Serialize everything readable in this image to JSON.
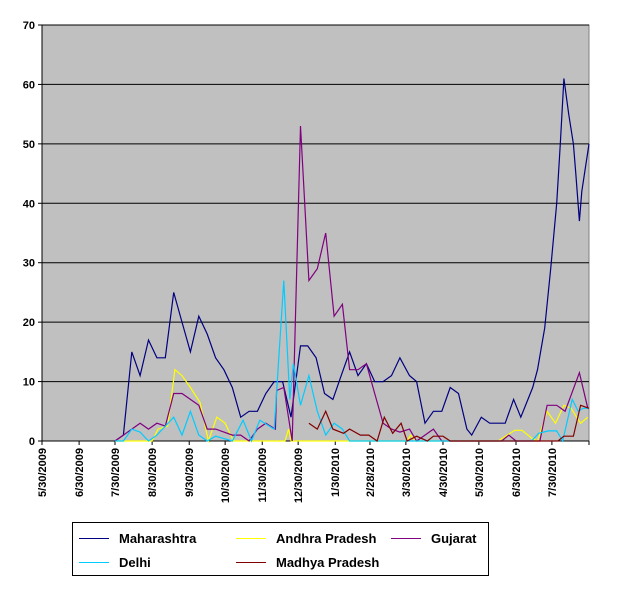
{
  "chart_data": {
    "type": "line",
    "title": "",
    "xlabel": "",
    "ylabel": "",
    "x_unit": "days since 5/30/2009",
    "xlim": [
      0,
      457
    ],
    "ylim": [
      0,
      70
    ],
    "grid": true,
    "legend_placement": "bottom",
    "y_ticks": [
      0,
      10,
      20,
      30,
      40,
      50,
      60,
      70
    ],
    "x_ticks": [
      {
        "day": 0,
        "label": "5/30/2009"
      },
      {
        "day": 31,
        "label": "6/30/2009"
      },
      {
        "day": 61,
        "label": "7/30/2009"
      },
      {
        "day": 92,
        "label": "8/30/2009"
      },
      {
        "day": 123,
        "label": "9/30/2009"
      },
      {
        "day": 153,
        "label": "10/30/2009"
      },
      {
        "day": 184,
        "label": "11/30/2009"
      },
      {
        "day": 214,
        "label": "12/30/2009"
      },
      {
        "day": 245,
        "label": "1/30/2010"
      },
      {
        "day": 274,
        "label": "2/28/2010"
      },
      {
        "day": 304,
        "label": "3/30/2010"
      },
      {
        "day": 335,
        "label": "4/30/2010"
      },
      {
        "day": 365,
        "label": "5/30/2010"
      },
      {
        "day": 396,
        "label": "6/30/2010"
      },
      {
        "day": 426,
        "label": "7/30/2010"
      }
    ],
    "series": [
      {
        "name": "Maharashtra",
        "color": "#000080",
        "points": [
          [
            61,
            0
          ],
          [
            68,
            1
          ],
          [
            75,
            15
          ],
          [
            82,
            11
          ],
          [
            89,
            17
          ],
          [
            96,
            14
          ],
          [
            103,
            14
          ],
          [
            110,
            25
          ],
          [
            117,
            20
          ],
          [
            124,
            15
          ],
          [
            131,
            21
          ],
          [
            138,
            18
          ],
          [
            145,
            14
          ],
          [
            152,
            12
          ],
          [
            159,
            9
          ],
          [
            166,
            4
          ],
          [
            173,
            5
          ],
          [
            180,
            5
          ],
          [
            187,
            8
          ],
          [
            194,
            10
          ],
          [
            201,
            10
          ],
          [
            208,
            4
          ],
          [
            216,
            16
          ],
          [
            222,
            16
          ],
          [
            229,
            14
          ],
          [
            236,
            8
          ],
          [
            243,
            7
          ],
          [
            250,
            11
          ],
          [
            257,
            15
          ],
          [
            264,
            11
          ],
          [
            271,
            13
          ],
          [
            278,
            10
          ],
          [
            285,
            10
          ],
          [
            292,
            11
          ],
          [
            299,
            14
          ],
          [
            307,
            11
          ],
          [
            313,
            10
          ],
          [
            320,
            3
          ],
          [
            327,
            5
          ],
          [
            334,
            5
          ],
          [
            341,
            9
          ],
          [
            348,
            8
          ],
          [
            355,
            2
          ],
          [
            359,
            1
          ],
          [
            367,
            4
          ],
          [
            374,
            3
          ],
          [
            387,
            3
          ],
          [
            394,
            7
          ],
          [
            400,
            4
          ],
          [
            410,
            9
          ],
          [
            414,
            12
          ],
          [
            420,
            19
          ],
          [
            425,
            29
          ],
          [
            430,
            40
          ],
          [
            433,
            50
          ],
          [
            436,
            61
          ],
          [
            440,
            55
          ],
          [
            444,
            50
          ],
          [
            446,
            45
          ],
          [
            449,
            37
          ],
          [
            451,
            42
          ],
          [
            457,
            50
          ]
        ]
      },
      {
        "name": "Andhra Pradesh",
        "color": "#FFFF00",
        "points": [
          [
            61,
            0
          ],
          [
            92,
            0
          ],
          [
            97,
            2
          ],
          [
            105,
            2.5
          ],
          [
            111,
            12
          ],
          [
            117,
            11
          ],
          [
            124,
            9
          ],
          [
            132,
            6.5
          ],
          [
            139,
            0
          ],
          [
            146,
            4
          ],
          [
            153,
            3
          ],
          [
            160,
            0
          ],
          [
            203,
            0
          ],
          [
            206,
            2
          ],
          [
            208,
            0
          ],
          [
            305,
            0
          ],
          [
            308,
            1
          ],
          [
            312,
            0
          ],
          [
            381,
            0
          ],
          [
            395,
            1.8
          ],
          [
            401,
            1.8
          ],
          [
            409,
            0.5
          ],
          [
            414,
            0
          ],
          [
            422,
            5
          ],
          [
            429,
            3
          ],
          [
            436,
            6
          ],
          [
            442,
            5.5
          ],
          [
            450,
            3
          ],
          [
            456,
            4
          ]
        ]
      },
      {
        "name": "Gujarat",
        "color": "#800080",
        "points": [
          [
            61,
            0
          ],
          [
            68,
            1
          ],
          [
            75,
            2
          ],
          [
            82,
            3
          ],
          [
            89,
            2
          ],
          [
            96,
            3
          ],
          [
            103,
            2.5
          ],
          [
            110,
            8
          ],
          [
            117,
            8
          ],
          [
            124,
            7
          ],
          [
            131,
            6
          ],
          [
            138,
            2
          ],
          [
            145,
            2
          ],
          [
            152,
            1.5
          ],
          [
            159,
            1
          ],
          [
            166,
            1
          ],
          [
            173,
            0
          ],
          [
            180,
            2
          ],
          [
            187,
            3
          ],
          [
            195,
            2
          ],
          [
            196,
            8.5
          ],
          [
            202,
            9
          ],
          [
            209,
            0
          ],
          [
            216,
            53
          ],
          [
            223,
            27
          ],
          [
            230,
            29
          ],
          [
            237,
            35
          ],
          [
            244,
            21
          ],
          [
            251,
            23
          ],
          [
            257,
            12
          ],
          [
            264,
            12
          ],
          [
            271,
            13
          ],
          [
            278,
            8
          ],
          [
            285,
            3
          ],
          [
            292,
            2
          ],
          [
            299,
            1.5
          ],
          [
            307,
            2
          ],
          [
            313,
            0
          ],
          [
            320,
            1
          ],
          [
            327,
            2
          ],
          [
            334,
            0
          ],
          [
            384,
            0
          ],
          [
            390,
            1
          ],
          [
            396,
            0
          ],
          [
            416,
            0
          ],
          [
            422,
            6
          ],
          [
            430,
            6
          ],
          [
            437,
            5
          ],
          [
            449,
            11.5
          ],
          [
            456,
            5.5
          ]
        ]
      },
      {
        "name": "Delhi",
        "color": "#00CCFF",
        "points": [
          [
            61,
            0
          ],
          [
            68,
            0
          ],
          [
            75,
            2
          ],
          [
            82,
            1.5
          ],
          [
            89,
            0
          ],
          [
            96,
            1
          ],
          [
            110,
            4
          ],
          [
            117,
            1
          ],
          [
            124,
            5
          ],
          [
            131,
            1
          ],
          [
            138,
            0
          ],
          [
            145,
            0.8
          ],
          [
            159,
            0
          ],
          [
            168,
            3.5
          ],
          [
            175,
            0
          ],
          [
            182,
            3.5
          ],
          [
            194,
            2
          ],
          [
            202,
            27
          ],
          [
            207,
            7
          ],
          [
            210,
            13
          ],
          [
            216,
            6
          ],
          [
            223,
            11
          ],
          [
            230,
            5
          ],
          [
            237,
            1
          ],
          [
            244,
            3
          ],
          [
            251,
            2
          ],
          [
            257,
            0
          ],
          [
            409,
            0
          ],
          [
            415,
            1.3
          ],
          [
            423,
            1.7
          ],
          [
            430,
            1.7
          ],
          [
            435,
            0
          ],
          [
            443,
            7
          ],
          [
            448,
            5
          ],
          [
            452,
            5.5
          ],
          [
            457,
            5.5
          ]
        ]
      },
      {
        "name": "Madhya Pradesh",
        "color": "#800000",
        "points": [
          [
            223,
            3
          ],
          [
            230,
            2
          ],
          [
            237,
            5
          ],
          [
            243,
            2
          ],
          [
            252,
            1.3
          ],
          [
            257,
            2
          ],
          [
            266,
            1
          ],
          [
            273,
            1
          ],
          [
            280,
            0
          ],
          [
            286,
            4
          ],
          [
            293,
            1.3
          ],
          [
            300,
            3
          ],
          [
            305,
            0
          ],
          [
            313,
            0.8
          ],
          [
            322,
            0
          ],
          [
            327,
            0.8
          ],
          [
            335,
            0.8
          ],
          [
            341,
            0
          ],
          [
            431,
            0
          ],
          [
            436,
            0.8
          ],
          [
            444,
            0.8
          ],
          [
            450,
            6
          ],
          [
            457,
            5.5
          ]
        ]
      }
    ]
  }
}
